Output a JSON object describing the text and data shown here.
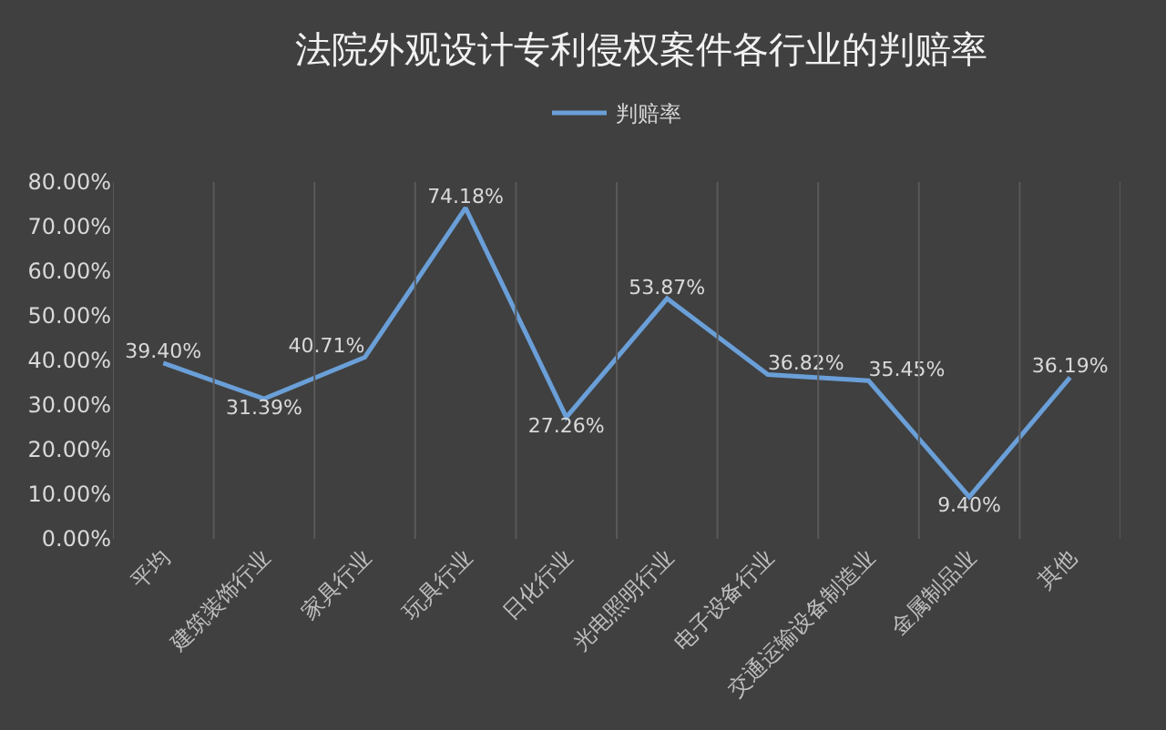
{
  "chart_data": {
    "type": "line",
    "title": "法院外观设计专利侵权案件各行业的判赔率",
    "categories": [
      "平均",
      "建筑装饰行业",
      "家具行业",
      "玩具行业",
      "日化行业",
      "光电照明行业",
      "电子设备行业",
      "交通运输设备制造业",
      "金属制品业",
      "其他"
    ],
    "series": [
      {
        "name": "判赔率",
        "color": "#6a9fd8",
        "values": [
          39.4,
          31.39,
          40.71,
          74.18,
          27.26,
          53.87,
          36.82,
          35.45,
          9.4,
          36.19
        ],
        "value_labels": [
          "39.40%",
          "31.39%",
          "40.71%",
          "74.18%",
          "27.26%",
          "53.87%",
          "36.82%",
          "35.45%",
          "9.40%",
          "36.19%"
        ]
      }
    ],
    "ylim": [
      0,
      80
    ],
    "yticks": [
      {
        "value": 0,
        "label": "0.00%"
      },
      {
        "value": 10,
        "label": "10.00%"
      },
      {
        "value": 20,
        "label": "20.00%"
      },
      {
        "value": 30,
        "label": "30.00%"
      },
      {
        "value": 40,
        "label": "40.00%"
      },
      {
        "value": 50,
        "label": "50.00%"
      },
      {
        "value": 60,
        "label": "60.00%"
      },
      {
        "value": 70,
        "label": "70.00%"
      },
      {
        "value": 80,
        "label": "80.00%"
      }
    ],
    "grid": "x",
    "legend": "top",
    "marker": "none",
    "line_style": "solid"
  }
}
